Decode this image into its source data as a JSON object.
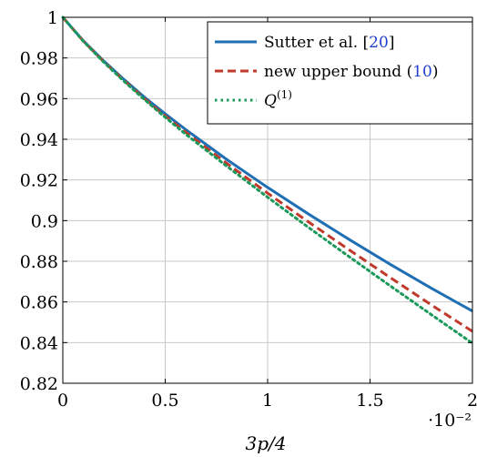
{
  "chart_data": {
    "type": "line",
    "xlabel": "3p/4",
    "x_scale_note": "·10⁻²",
    "xlim": [
      0,
      2
    ],
    "ylim": [
      0.82,
      1.0
    ],
    "grid": true,
    "legend_placement": "top-right",
    "xticks": [
      "0",
      "0.5",
      "1",
      "1.5",
      "2"
    ],
    "yticks": [
      "0.82",
      "0.84",
      "0.86",
      "0.88",
      "0.9",
      "0.92",
      "0.94",
      "0.96",
      "0.98",
      "1"
    ],
    "series": [
      {
        "name": "Sutter et al. [20]",
        "legend_prefix": "Sutter et al. [",
        "legend_ref": "20",
        "legend_suffix": "]",
        "color": "#1f6fb4",
        "style": "solid",
        "x": [
          0,
          0.1,
          0.2,
          0.3,
          0.4,
          0.5,
          0.6,
          0.8,
          1.0,
          1.2,
          1.4,
          1.6,
          1.8,
          2.0
        ],
        "y": [
          1.0,
          0.9885,
          0.9785,
          0.9693,
          0.9606,
          0.9525,
          0.9448,
          0.9301,
          0.9163,
          0.9032,
          0.8906,
          0.8784,
          0.8667,
          0.8555
        ]
      },
      {
        "name": "new upper bound (10)",
        "legend_prefix": "new upper bound (",
        "legend_ref": "10",
        "legend_suffix": ")",
        "color": "#c0392b",
        "style": "dashed",
        "x": [
          0,
          0.1,
          0.2,
          0.3,
          0.4,
          0.5,
          0.6,
          0.8,
          1.0,
          1.2,
          1.4,
          1.6,
          1.8,
          2.0
        ],
        "y": [
          1.0,
          0.9883,
          0.9781,
          0.9688,
          0.9599,
          0.9515,
          0.9435,
          0.9282,
          0.9135,
          0.8993,
          0.8855,
          0.8719,
          0.8585,
          0.8455
        ]
      },
      {
        "name": "Q(1)",
        "legend_prefix": "Q",
        "legend_ref": "(1)",
        "legend_suffix": "",
        "color": "#1a9a5a",
        "style": "dotted",
        "x": [
          0,
          0.1,
          0.2,
          0.3,
          0.4,
          0.5,
          0.6,
          0.8,
          1.0,
          1.2,
          1.4,
          1.6,
          1.8,
          2.0
        ],
        "y": [
          1.0,
          0.9882,
          0.9779,
          0.9684,
          0.9594,
          0.9508,
          0.9425,
          0.9268,
          0.9115,
          0.8966,
          0.8821,
          0.8678,
          0.8537,
          0.8397
        ]
      }
    ]
  }
}
